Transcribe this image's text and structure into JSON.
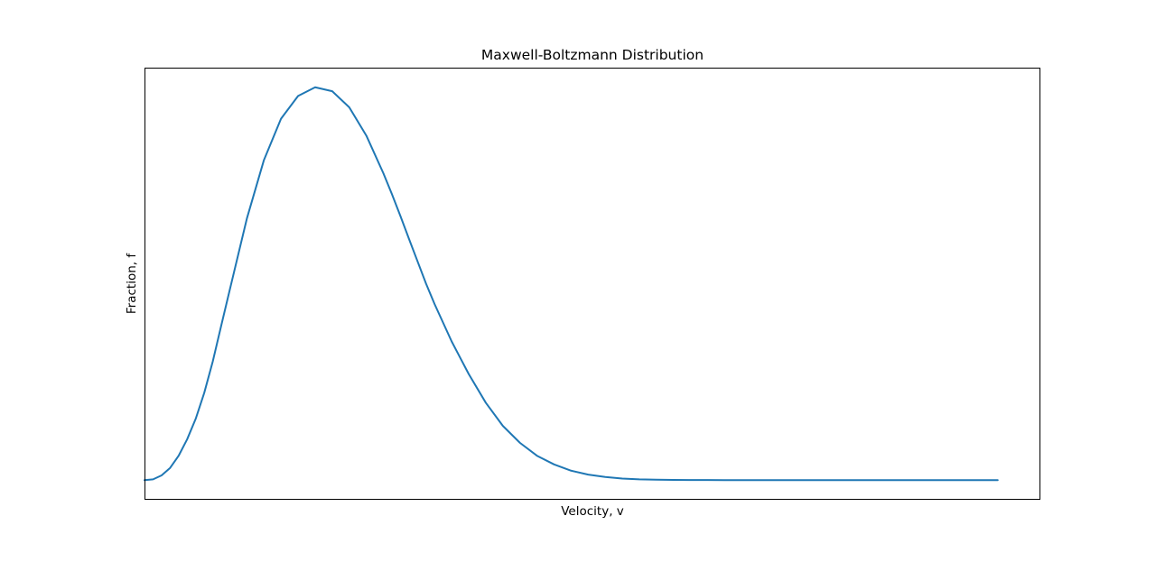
{
  "chart_data": {
    "type": "line",
    "title": "Maxwell-Boltzmann Distribution",
    "xlabel": "Velocity, v",
    "ylabel": "Fraction, f",
    "xticks": [],
    "yticks": [],
    "grid": false,
    "legend": "none",
    "xlim": [
      0,
      1.05
    ],
    "ylim": [
      -0.05,
      1.05
    ],
    "series": [
      {
        "color": "#1f77b4",
        "x": [
          0.0,
          0.01,
          0.02,
          0.03,
          0.04,
          0.05,
          0.06,
          0.07,
          0.08,
          0.09,
          0.1,
          0.12,
          0.14,
          0.16,
          0.18,
          0.2,
          0.22,
          0.24,
          0.26,
          0.28,
          0.29,
          0.3,
          0.31,
          0.32,
          0.33,
          0.34,
          0.36,
          0.38,
          0.4,
          0.42,
          0.44,
          0.46,
          0.48,
          0.5,
          0.52,
          0.54,
          0.56,
          0.58,
          0.6,
          0.62,
          0.64,
          0.66,
          0.68,
          0.7,
          0.72,
          0.74,
          0.76,
          0.78,
          0.8,
          0.84,
          0.88,
          0.92,
          0.96,
          1.0
        ],
        "y": [
          0.0,
          0.002,
          0.012,
          0.031,
          0.062,
          0.104,
          0.156,
          0.222,
          0.302,
          0.394,
          0.485,
          0.666,
          0.815,
          0.92,
          0.978,
          1.0,
          0.99,
          0.949,
          0.877,
          0.781,
          0.728,
          0.672,
          0.614,
          0.557,
          0.5,
          0.448,
          0.353,
          0.27,
          0.197,
          0.138,
          0.095,
          0.062,
          0.04,
          0.024,
          0.014,
          0.008,
          0.004,
          0.002,
          0.001,
          0.0005,
          0.0002,
          0.0001,
          0.0,
          0.0,
          0.0,
          0.0,
          0.0,
          0.0,
          0.0,
          0.0,
          0.0,
          0.0,
          0.0,
          0.0
        ]
      }
    ]
  }
}
